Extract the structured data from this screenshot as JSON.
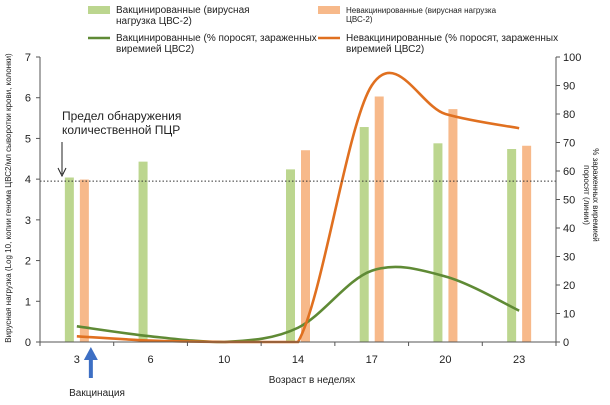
{
  "chart_data": {
    "type": "bar",
    "categories": [
      "3",
      "6",
      "10",
      "14",
      "17",
      "20",
      "23"
    ],
    "xlabel": "Возраст в неделях",
    "ylabel": "Вирусная нагрузка (Log 10, копии генома ЦВС2/мл сыворотки крови, колонки)",
    "y2label_lines": [
      "% зараженных виремией",
      "поросят (линии)"
    ],
    "ylim": [
      0,
      7
    ],
    "y2lim": [
      0,
      100
    ],
    "yticks": [
      "0",
      "1",
      "2",
      "3",
      "4",
      "5",
      "6",
      "7"
    ],
    "y2ticks": [
      "0",
      "10",
      "20",
      "30",
      "40",
      "50",
      "60",
      "70",
      "80",
      "90",
      "100"
    ],
    "series": [
      {
        "name": "Вакцинированные (вирусная нагрузка ЦВС-2)",
        "legend_lines": [
          "Вакцинированные (вирусная",
          "нагрузка ЦВС-2)"
        ],
        "type": "bar",
        "axis": "left",
        "color": "#bcd68f",
        "values": [
          4.04,
          4.43,
          null,
          4.24,
          5.28,
          4.88,
          4.74
        ]
      },
      {
        "name": "Невакцинированные (вирусная нагрузка ЦВС-2)",
        "legend_lines": [
          "Невакцинированные (вирусная нагрузка",
          "ЦВС-2)"
        ],
        "type": "bar",
        "axis": "left",
        "color": "#f7b98a",
        "values": [
          3.99,
          null,
          null,
          4.71,
          6.03,
          5.72,
          4.82
        ]
      },
      {
        "name": "Вакцинированные (% поросят, зараженных виремией ЦВС2)",
        "legend_lines": [
          "Вакцинированные (% поросят, зараженных",
          "виремией ЦВС2)"
        ],
        "type": "line",
        "axis": "right",
        "color": "#5f8a35",
        "values": [
          5.5,
          2,
          0,
          5,
          25,
          23,
          11
        ]
      },
      {
        "name": "Невакцинированные (% поросят, зараженных виремией ЦВС2)",
        "legend_lines": [
          "Невакцинированные (% поросят, зараженных",
          "виремией ЦВС2)"
        ],
        "type": "line",
        "axis": "right",
        "color": "#e07020",
        "values": [
          2,
          0.5,
          0,
          0,
          90,
          80,
          75
        ]
      }
    ],
    "reference_line": {
      "value": 3.95,
      "label_lines": [
        "Предел обнаружения",
        "количественной ПЦР"
      ]
    },
    "annotation": {
      "label": "Вакцинация",
      "category": "3",
      "color": "#3d6fc4"
    },
    "grid": false,
    "legend_position": "top"
  }
}
